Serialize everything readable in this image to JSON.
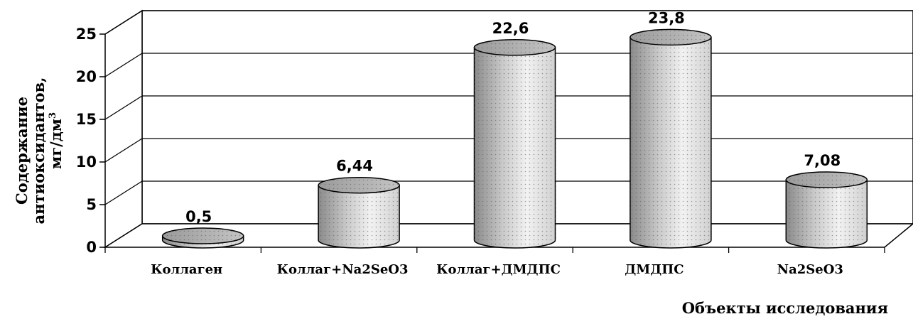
{
  "chart_data": {
    "type": "bar",
    "style": "3d-cylinder",
    "categories": [
      "Коллаген",
      "Коллаг+Na2SeO3",
      "Коллаг+ДМДПС",
      "ДМДПС",
      "Na2SeO3"
    ],
    "values": [
      0.5,
      6.44,
      22.6,
      23.8,
      7.08
    ],
    "data_labels": [
      "0,5",
      "6,44",
      "22,6",
      "23,8",
      "7,08"
    ],
    "y_ticks": [
      "0",
      "5",
      "10",
      "15",
      "20",
      "25"
    ],
    "ylim": [
      0,
      25
    ],
    "ylabel_line1": "Содержание",
    "ylabel_line2": "антиоксидантов,",
    "ylabel_line3": "мг/дм",
    "ylabel_sup": "3",
    "xlabel": "Объекты исследования",
    "grid": true,
    "legend": "none"
  }
}
